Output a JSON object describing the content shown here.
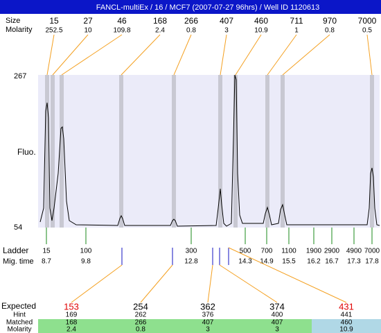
{
  "header": {
    "title": "FANCL-multiEx / 16 / MCF7 (2007-07-27 96hrs) / Well ID 1120613"
  },
  "peaks": {
    "size_label": "Size",
    "molarity_label": "Molarity",
    "sizes": [
      15,
      27,
      46,
      168,
      266,
      407,
      460,
      711,
      970,
      7000
    ],
    "molarity": [
      252.5,
      10,
      109.8,
      2.4,
      0.8,
      3,
      10.9,
      1,
      0.8,
      0.5
    ]
  },
  "plot": {
    "ylabel": "Fluo.",
    "ylim": [
      54,
      267
    ],
    "yticks": [
      54,
      267
    ]
  },
  "ladder": {
    "label": "Ladder",
    "time_label": "Mig. time",
    "sizes": [
      15,
      100,
      300,
      500,
      700,
      1100,
      1900,
      2900,
      4900,
      7000
    ],
    "times": [
      8.7,
      9.8,
      12.8,
      14.3,
      14.9,
      15.5,
      16.2,
      16.7,
      17.3,
      17.8
    ]
  },
  "results": {
    "expected_label": "Expected",
    "hint_label": "Hint",
    "matched_label": "Matched",
    "molarity_label": "Molarity",
    "expected": [
      153,
      254,
      362,
      374,
      431
    ],
    "flagged": [
      true,
      false,
      false,
      false,
      true
    ],
    "hint": [
      169,
      262,
      376,
      400,
      441
    ],
    "matched": [
      168,
      266,
      407,
      407,
      460
    ],
    "molarity": [
      2.4,
      0.8,
      3,
      3,
      10.9
    ]
  }
}
